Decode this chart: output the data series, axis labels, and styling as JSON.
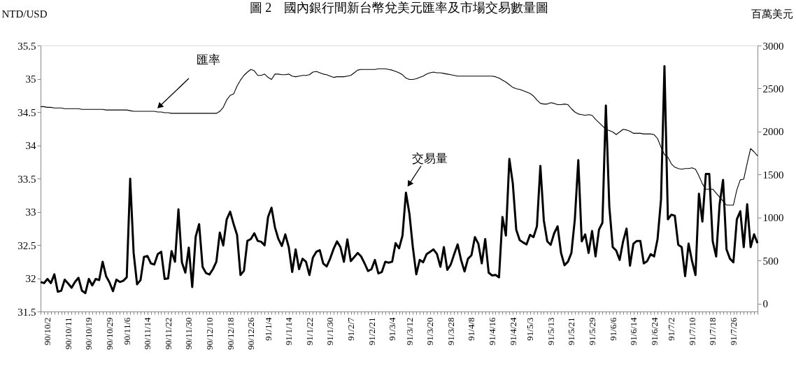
{
  "chart_data": {
    "type": "line",
    "title": "圖 2　國內銀行間新台幣兌美元匯率及市場交易數量圖",
    "ylabel": "NTD/USD",
    "y2label": "百萬美元",
    "categories": [
      null,
      null,
      "90/10/2",
      null,
      null,
      null,
      null,
      null,
      "90/10/11",
      null,
      null,
      null,
      null,
      null,
      "90/10/19",
      null,
      null,
      null,
      null,
      null,
      "90/10/29",
      null,
      null,
      null,
      null,
      "90/11/6",
      null,
      null,
      null,
      null,
      null,
      "90/11/14",
      null,
      null,
      null,
      null,
      null,
      "90/11/22",
      null,
      null,
      null,
      null,
      null,
      "90/11/30",
      null,
      null,
      null,
      null,
      null,
      "90/12/10",
      null,
      null,
      null,
      null,
      null,
      "90/12/18",
      null,
      null,
      null,
      null,
      null,
      "90/12/26",
      null,
      null,
      null,
      null,
      "91/1/4",
      null,
      null,
      null,
      null,
      null,
      "91/1/14",
      null,
      null,
      null,
      null,
      null,
      "91/1/22",
      null,
      null,
      null,
      null,
      null,
      "91/1/30",
      null,
      null,
      null,
      null,
      null,
      "91/2/7",
      null,
      null,
      null,
      null,
      null,
      "91/2/21",
      null,
      null,
      null,
      null,
      null,
      "91/3/4",
      null,
      null,
      null,
      null,
      "91/3/12",
      null,
      null,
      null,
      null,
      null,
      "91/3/20",
      null,
      null,
      null,
      null,
      null,
      "91/3/28",
      null,
      null,
      null,
      null,
      null,
      "91/4/8",
      null,
      null,
      null,
      null,
      null,
      "91/4/16",
      null,
      null,
      null,
      null,
      null,
      "91/4/24",
      null,
      null,
      null,
      null,
      "91/5/3",
      null,
      null,
      null,
      null,
      null,
      "91/5/13",
      null,
      null,
      null,
      null,
      null,
      "91/5/21",
      null,
      null,
      null,
      null,
      null,
      "91/5/29",
      null,
      null,
      null,
      null,
      null,
      "91/6/6",
      null,
      null,
      null,
      null,
      null,
      "91/6/14",
      null,
      null,
      null,
      null,
      null,
      "91/6/24",
      null,
      null,
      null,
      null,
      "91/7/2",
      null,
      null,
      null,
      null,
      null,
      "91/7/10",
      null,
      null,
      null,
      null,
      null,
      "91/7/18",
      null,
      null,
      null,
      null,
      null,
      "91/7/26",
      null,
      null,
      null,
      null,
      null,
      null,
      null
    ],
    "series": [
      {
        "name": "匯率",
        "color": "#000000",
        "values": [
          34.58,
          34.58,
          34.57,
          34.57,
          34.56,
          34.56,
          34.56,
          34.55,
          34.55,
          34.55,
          34.55,
          34.55,
          34.54,
          34.54,
          34.54,
          34.54,
          34.54,
          34.54,
          34.54,
          34.53,
          34.53,
          34.53,
          34.53,
          34.53,
          34.53,
          34.53,
          34.52,
          34.51,
          34.51,
          34.51,
          34.51,
          34.51,
          34.51,
          34.51,
          34.5,
          34.5,
          34.49,
          34.49,
          34.48,
          34.48,
          34.48,
          34.48,
          34.48,
          34.48,
          34.48,
          34.48,
          34.48,
          34.48,
          34.48,
          34.48,
          34.48,
          34.48,
          34.51,
          34.57,
          34.68,
          34.75,
          34.77,
          34.89,
          34.98,
          35.05,
          35.1,
          35.14,
          35.12,
          35.05,
          35.05,
          35.07,
          35.02,
          34.99,
          35.07,
          35.07,
          35.06,
          35.06,
          35.07,
          35.04,
          35.03,
          35.04,
          35.05,
          35.05,
          35.06,
          35.1,
          35.11,
          35.09,
          35.07,
          35.06,
          35.04,
          35.02,
          35.03,
          35.03,
          35.03,
          35.04,
          35.05,
          35.09,
          35.13,
          35.14,
          35.14,
          35.14,
          35.14,
          35.14,
          35.15,
          35.15,
          35.15,
          35.14,
          35.13,
          35.11,
          35.09,
          35.06,
          35.01,
          34.99,
          34.99,
          35.0,
          35.02,
          35.04,
          35.07,
          35.09,
          35.1,
          35.09,
          35.09,
          35.08,
          35.07,
          35.06,
          35.05,
          35.04,
          35.04,
          35.04,
          35.04,
          35.04,
          35.04,
          35.04,
          35.04,
          35.04,
          35.04,
          35.04,
          35.03,
          35.01,
          34.98,
          34.95,
          34.91,
          34.87,
          34.85,
          34.84,
          34.82,
          34.8,
          34.78,
          34.74,
          34.68,
          34.63,
          34.62,
          34.62,
          34.64,
          34.63,
          34.61,
          34.61,
          34.62,
          34.61,
          34.55,
          34.5,
          34.47,
          34.46,
          34.45,
          34.46,
          34.45,
          34.39,
          34.34,
          34.29,
          34.24,
          34.22,
          34.2,
          34.16,
          34.2,
          34.24,
          34.23,
          34.21,
          34.18,
          34.18,
          34.18,
          34.17,
          34.17,
          34.17,
          34.16,
          34.1,
          33.97,
          33.86,
          33.82,
          33.72,
          33.67,
          33.65,
          33.64,
          33.65,
          33.65,
          33.66,
          33.64,
          33.54,
          33.42,
          33.34,
          33.34,
          33.34,
          33.28,
          33.22,
          33.16,
          33.1,
          33.1,
          33.1,
          33.33,
          33.48,
          33.49,
          33.73,
          33.95,
          33.9,
          33.84
        ]
      },
      {
        "name": "交易量",
        "color": "#000000",
        "axis": "y2",
        "values": [
          253,
          240,
          288,
          240,
          342,
          140,
          151,
          280,
          235,
          186,
          253,
          302,
          151,
          124,
          288,
          213,
          288,
          275,
          488,
          321,
          248,
          146,
          280,
          253,
          267,
          307,
          1453,
          590,
          226,
          275,
          544,
          555,
          469,
          456,
          577,
          604,
          288,
          294,
          612,
          488,
          1097,
          482,
          361,
          652,
          194,
          779,
          925,
          429,
          356,
          340,
          402,
          488,
          827,
          677,
          981,
          1070,
          927,
          801,
          334,
          383,
          730,
          752,
          819,
          730,
          720,
          679,
          1008,
          1116,
          887,
          752,
          671,
          806,
          658,
          369,
          631,
          402,
          523,
          488,
          334,
          536,
          604,
          623,
          469,
          434,
          523,
          636,
          725,
          658,
          488,
          747,
          496,
          542,
          590,
          550,
          469,
          380,
          402,
          509,
          353,
          369,
          488,
          477,
          488,
          704,
          644,
          792,
          1291,
          1049,
          658,
          342,
          509,
          482,
          577,
          604,
          631,
          577,
          429,
          658,
          394,
          456,
          577,
          690,
          509,
          375,
          523,
          563,
          774,
          698,
          469,
          752,
          361,
          329,
          334,
          307,
          1008,
          792,
          1682,
          1399,
          860,
          739,
          712,
          690,
          801,
          774,
          900,
          1601,
          968,
          725,
          685,
          819,
          900,
          590,
          447,
          488,
          590,
          981,
          1668,
          725,
          806,
          590,
          846,
          550,
          860,
          941,
          2302,
          1129,
          658,
          617,
          509,
          725,
          873,
          442,
          698,
          730,
          730,
          469,
          496,
          577,
          550,
          752,
          1210,
          2760,
          981,
          1035,
          1022,
          685,
          658,
          321,
          698,
          496,
          334,
          1278,
          954,
          1507,
          1507,
          725,
          550,
          1156,
          1439,
          631,
          523,
          482,
          981,
          1075,
          658,
          1156,
          658,
          806,
          704
        ]
      }
    ],
    "ylim": [
      31.5,
      35.5
    ],
    "yticks": [
      31.5,
      32,
      32.5,
      33,
      33.5,
      34,
      34.5,
      35,
      35.5
    ],
    "y2lim": [
      -90,
      3000
    ],
    "y2ticks": [
      0,
      500,
      1000,
      1500,
      2000,
      2500,
      3000
    ],
    "grid": false,
    "line_style": "solid"
  }
}
